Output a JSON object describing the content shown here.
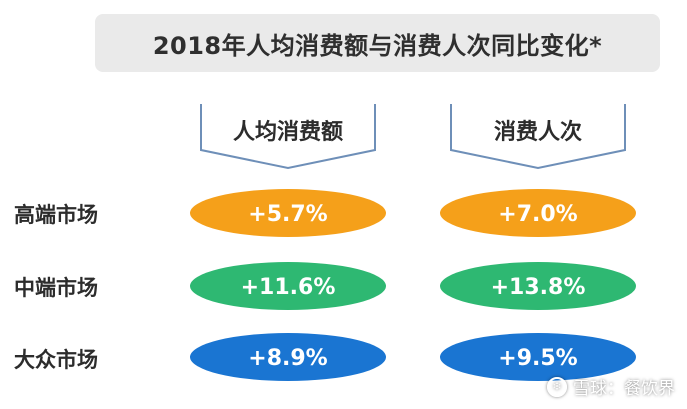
{
  "chart_data": {
    "type": "table",
    "title": "2018年人均消费额与消费人次同比变化*",
    "columns": [
      "人均消费额",
      "消费人次"
    ],
    "rows": [
      {
        "label": "高端市场",
        "values": [
          "+5.7%",
          "+7.0%"
        ],
        "color": "#f5a01a"
      },
      {
        "label": "中端市场",
        "values": [
          "+11.6%",
          "+13.8%"
        ],
        "color": "#2eb872"
      },
      {
        "label": "大众市场",
        "values": [
          "+8.9%",
          "+9.5%"
        ],
        "color": "#1a75d2"
      }
    ]
  },
  "bracket_color": "#6e8fb8",
  "watermark": {
    "icon": "snowball-logo-icon",
    "text": "雪球：餐饮界"
  }
}
